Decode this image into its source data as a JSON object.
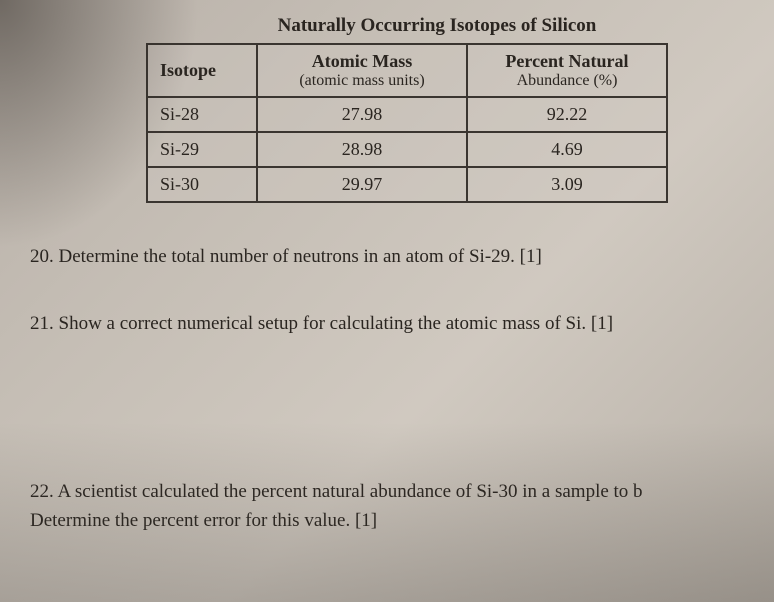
{
  "title": "Naturally Occurring Isotopes of Silicon",
  "table": {
    "headers": {
      "isotope": "Isotope",
      "mass": "Atomic Mass",
      "mass_sub": "(atomic mass units)",
      "abundance": "Percent Natural",
      "abundance_sub": "Abundance (%)"
    },
    "rows": [
      {
        "isotope": "Si-28",
        "mass": "27.98",
        "abundance": "92.22"
      },
      {
        "isotope": "Si-29",
        "mass": "28.98",
        "abundance": "4.69"
      },
      {
        "isotope": "Si-30",
        "mass": "29.97",
        "abundance": "3.09"
      }
    ],
    "border_color": "#3a3530",
    "background_color": "rgba(210,203,195,0.3)"
  },
  "questions": {
    "q20": "20.  Determine the total number of neutrons in an atom of Si-29. [1]",
    "q21": "21.   Show a correct numerical setup for calculating the atomic mass of Si. [1]",
    "q22_line1": "22.  A scientist calculated the percent natural abundance of Si-30 in a sample to b",
    "q22_line2": "Determine the percent error for this value. [1]"
  },
  "page_background": "#c5beb5",
  "text_color": "#2a2520"
}
